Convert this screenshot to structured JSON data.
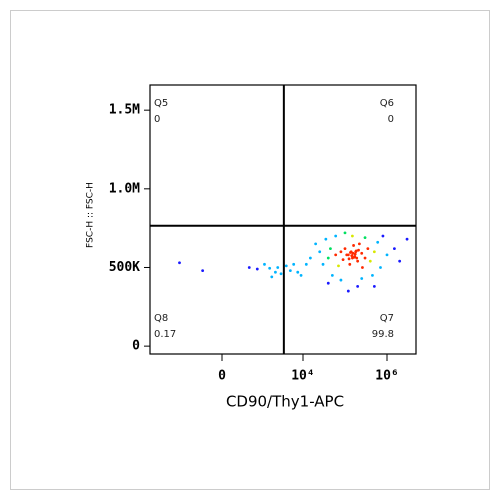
{
  "chart_data": {
    "type": "scatter",
    "xlabel": "CD90/Thy1-APC",
    "ylabel": "FSC-H :: FSC-H",
    "xscale": "biexponential",
    "xlim": [
      -6100,
      4900000
    ],
    "ylim": [
      -50000,
      1660000
    ],
    "xticks": [
      0,
      {
        "value": 10000,
        "label": "10⁴"
      },
      {
        "value": 1000000,
        "label": "10⁶"
      }
    ],
    "yticks": [
      0,
      {
        "value": 500000,
        "label": "500K"
      },
      {
        "value": 1000000,
        "label": "1.0M"
      },
      {
        "value": 1500000,
        "label": "1.5M"
      }
    ],
    "gate": {
      "x": 3500,
      "y": 765000
    },
    "quadrants": [
      {
        "name": "Q5",
        "value": 0,
        "corner": "top-left"
      },
      {
        "name": "Q6",
        "value": 0,
        "corner": "top-right"
      },
      {
        "name": "Q7",
        "value": 99.8,
        "corner": "bottom-right"
      },
      {
        "name": "Q8",
        "value": 0.17,
        "corner": "bottom-left"
      }
    ],
    "colormap": [
      "#1a1aff",
      "#00b4ff",
      "#00e060",
      "#d8e800",
      "#ff2a00"
    ],
    "x": [
      150000,
      120000,
      180000,
      200000,
      100000,
      250000,
      90000,
      160000,
      130000,
      220000,
      170000,
      140000,
      110000,
      190000,
      210000,
      80000,
      300000,
      60000,
      350000,
      70000,
      260000,
      45000,
      400000,
      500000,
      40000,
      600000,
      35000,
      30000,
      700000,
      50000,
      25000,
      1000000,
      20000,
      15000,
      1500000,
      2000000,
      250000,
      150000,
      100000,
      300000,
      80000,
      200000,
      120000,
      60000,
      450000,
      800000,
      12000,
      3000000,
      40000,
      500000,
      155000,
      145000,
      165000,
      135000,
      175000,
      125000,
      185000,
      -1200,
      500,
      800,
      1200,
      1600,
      2200,
      2500,
      3000,
      -300,
      4000,
      5000,
      6000,
      7500,
      9000,
      1800
    ],
    "values": [
      560000,
      580000,
      600000,
      540000,
      620000,
      590000,
      550000,
      640000,
      520000,
      650000,
      570000,
      600000,
      580000,
      560000,
      610000,
      600000,
      560000,
      580000,
      620000,
      510000,
      500000,
      620000,
      540000,
      600000,
      560000,
      660000,
      680000,
      520000,
      500000,
      450000,
      600000,
      580000,
      650000,
      560000,
      620000,
      540000,
      430000,
      700000,
      720000,
      690000,
      420000,
      380000,
      350000,
      700000,
      450000,
      700000,
      520000,
      680000,
      400000,
      380000,
      590000,
      575000,
      565000,
      595000,
      585000,
      555000,
      605000,
      530000,
      500000,
      490000,
      520000,
      495000,
      470000,
      500000,
      460000,
      480000,
      510000,
      480000,
      520000,
      470000,
      450000,
      440000
    ]
  }
}
